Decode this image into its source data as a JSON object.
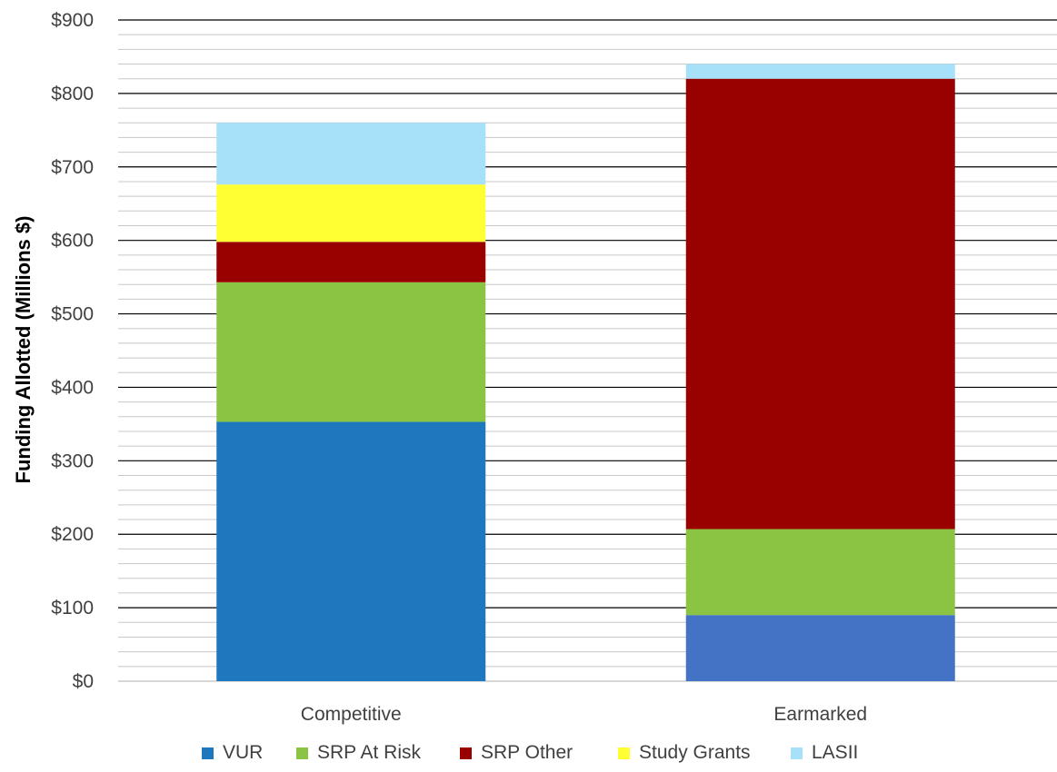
{
  "chart_data": {
    "type": "bar",
    "stacked": true,
    "title": "",
    "xlabel": "",
    "ylabel": "Funding Allotted (Millions $)",
    "ylim": [
      0,
      900
    ],
    "y_ticks": [
      0,
      100,
      200,
      300,
      400,
      500,
      600,
      700,
      800,
      900
    ],
    "y_tick_labels": [
      "$0",
      "$100",
      "$200",
      "$300",
      "$400",
      "$500",
      "$600",
      "$700",
      "$800",
      "$900"
    ],
    "minor_grid_step": 20,
    "grid": true,
    "legend_position": "bottom",
    "categories": [
      "Competitive",
      "Earmarked"
    ],
    "series": [
      {
        "name": "VUR",
        "color": "#1F77BE",
        "colors": [
          "#1F77BE",
          "#4472C4"
        ],
        "values": [
          353,
          90
        ]
      },
      {
        "name": "SRP At Risk",
        "color": "#8BC443",
        "values": [
          190,
          117
        ]
      },
      {
        "name": "SRP Other",
        "color": "#990000",
        "values": [
          55,
          613
        ]
      },
      {
        "name": "Study Grants",
        "color": "#FFFF33",
        "values": [
          78,
          0
        ]
      },
      {
        "name": "LASII",
        "color": "#A6E0F9",
        "values": [
          84,
          20
        ]
      }
    ]
  }
}
